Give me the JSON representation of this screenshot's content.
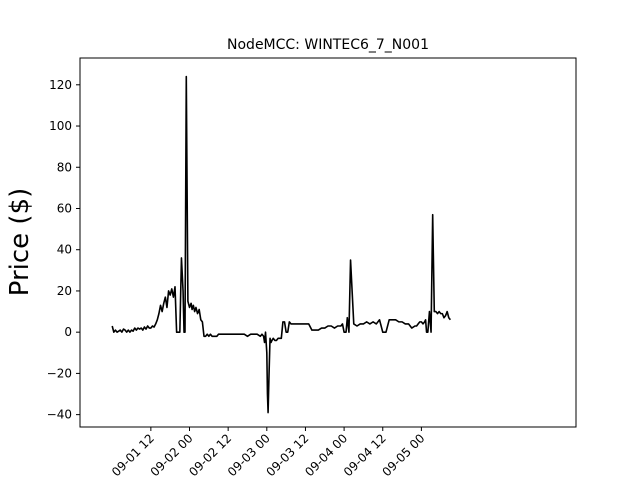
{
  "chart_data": {
    "type": "line",
    "title": "NodeMCC: WINTEC6_7_N001",
    "xlabel": "",
    "ylabel": "Price ($)",
    "x_unit": "hours from 09-01 00",
    "xlim": [
      -10,
      144
    ],
    "ylim": [
      -46,
      133
    ],
    "x_ticks": [
      {
        "value": 12,
        "label": "09-01 12"
      },
      {
        "value": 24,
        "label": "09-02 00"
      },
      {
        "value": 36,
        "label": "09-02 12"
      },
      {
        "value": 48,
        "label": "09-03 00"
      },
      {
        "value": 60,
        "label": "09-03 12"
      },
      {
        "value": 72,
        "label": "09-04 00"
      },
      {
        "value": 84,
        "label": "09-04 12"
      },
      {
        "value": 96,
        "label": "09-05 00"
      }
    ],
    "y_ticks": [
      -40,
      -20,
      0,
      20,
      40,
      60,
      80,
      100,
      120
    ],
    "grid": false,
    "series": [
      {
        "color": "#000000",
        "x": [
          0,
          0.5,
          1,
          1.5,
          2,
          2.5,
          3,
          3.5,
          4,
          4.5,
          5,
          5.5,
          6,
          6.5,
          7,
          7.5,
          8,
          8.5,
          9,
          9.5,
          10,
          10.5,
          11,
          11.5,
          12,
          12.5,
          13,
          13.5,
          14,
          14.5,
          15,
          15.5,
          16,
          16.5,
          17,
          17.5,
          18,
          18.5,
          19,
          19.5,
          20,
          20.5,
          21,
          21.5,
          22,
          22.3,
          22.6,
          23,
          23.5,
          24,
          24.5,
          24.8,
          25.2,
          25.6,
          26,
          26.5,
          27,
          27.5,
          28,
          28.5,
          29,
          29.5,
          30,
          30.5,
          31,
          31.5,
          32,
          32.5,
          33,
          34,
          35,
          36,
          37,
          38,
          39,
          40,
          41,
          42,
          43,
          44,
          45,
          46,
          46.5,
          47,
          47.3,
          47.6,
          48,
          48.2,
          48.4,
          48.7,
          49,
          49.3,
          49.6,
          50,
          50.5,
          51,
          51.5,
          52,
          52.5,
          53,
          53.5,
          54,
          54.5,
          55,
          55.5,
          56,
          57,
          58,
          59,
          60,
          61,
          62,
          63,
          64,
          65,
          66,
          67,
          68,
          69,
          70,
          70.5,
          71,
          71.5,
          72,
          72.3,
          72.6,
          73,
          73.5,
          74,
          75,
          76,
          77,
          78,
          79,
          80,
          81,
          82,
          83,
          84,
          85,
          86,
          87,
          88,
          89,
          90,
          91,
          92,
          93,
          94,
          94.5,
          95,
          95.5,
          96,
          96.5,
          97,
          97.3,
          97.6,
          98,
          98.5,
          99,
          99.5,
          100,
          100.5,
          101,
          101.5,
          102,
          102.5,
          103,
          103.5,
          104,
          104.5,
          105
        ],
        "y": [
          3,
          0,
          1,
          0,
          0.5,
          1,
          0,
          1.5,
          1,
          0,
          1,
          0,
          1,
          0.5,
          2,
          1,
          2,
          1.5,
          2,
          1,
          2.5,
          1.5,
          3,
          2,
          2,
          3,
          2.5,
          4,
          6,
          9,
          13,
          10,
          14,
          17,
          12,
          20,
          18,
          21,
          17,
          22,
          0,
          0,
          0,
          36,
          20,
          0,
          0,
          124,
          15,
          12,
          14,
          11,
          13,
          10,
          12,
          9,
          11,
          6,
          5,
          -2,
          -2,
          -1,
          -2,
          -1,
          -2,
          -2,
          -2,
          -2,
          -1,
          -1,
          -1,
          -1,
          -1,
          -1,
          -1,
          -1,
          -1,
          -2,
          -1,
          -1,
          -1,
          -2,
          -1,
          -2,
          -5,
          0,
          -10,
          -30,
          -39,
          -20,
          -3,
          -5,
          -4,
          -3,
          -4,
          -4,
          -3,
          -3,
          -3,
          5,
          5,
          0,
          0,
          5,
          4,
          4,
          4,
          4,
          4,
          4,
          4,
          1,
          1,
          1,
          2,
          2,
          3,
          3,
          2,
          3,
          3,
          3,
          4,
          0,
          0,
          0,
          7,
          0,
          35,
          4,
          3,
          4,
          4,
          5,
          4,
          5,
          4,
          6,
          0,
          0,
          6,
          6,
          6,
          5,
          5,
          4,
          4,
          2,
          3,
          3,
          4,
          5,
          5,
          4,
          5,
          6,
          0,
          0,
          10,
          0,
          57,
          10,
          10,
          9,
          10,
          9,
          9,
          7,
          8,
          10,
          7,
          6
        ],
        "note": "values read approximately from the plotted line"
      }
    ]
  }
}
